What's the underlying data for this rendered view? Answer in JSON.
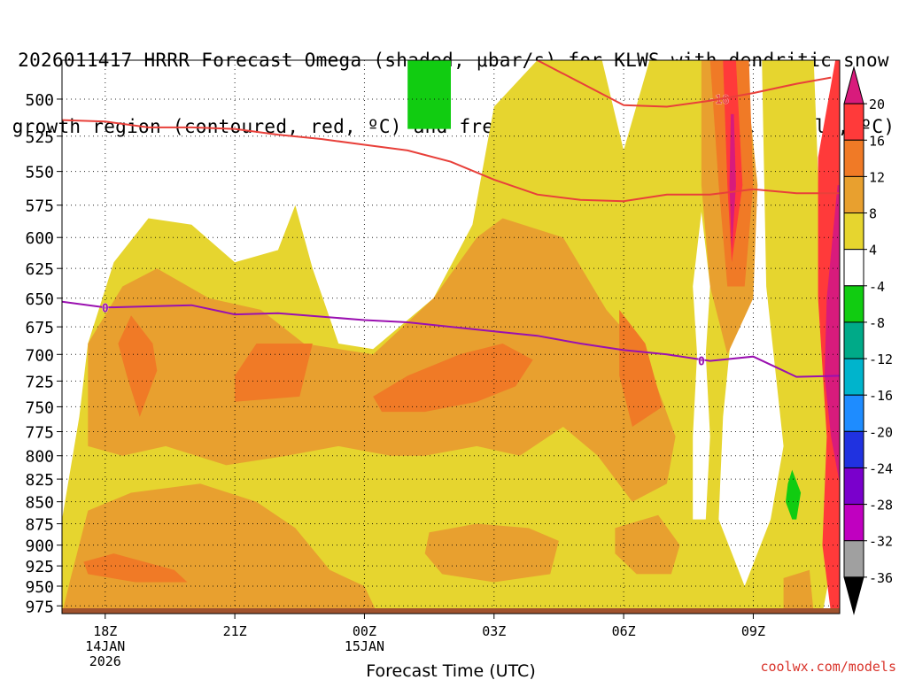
{
  "title": {
    "line1": "2026011417 HRRR Forecast Omega (shaded, μbar/s) for KLWS with dendritic snow",
    "line2": "growth region (contoured, red, ºC) and freezing level (contoured, purple, ºC)"
  },
  "credit": "coolwx.com/models",
  "chart_data": {
    "type": "heatmap",
    "xlabel": "Forecast Time (UTC)",
    "x_hours": [
      18,
      21,
      24,
      27,
      30,
      33
    ],
    "xlim": [
      17,
      35
    ],
    "x_ticks": [
      {
        "hour": 18,
        "lines": [
          "18Z",
          "14JAN",
          "2026"
        ]
      },
      {
        "hour": 21,
        "lines": [
          "21Z"
        ]
      },
      {
        "hour": 24,
        "lines": [
          "00Z",
          "15JAN"
        ]
      },
      {
        "hour": 27,
        "lines": [
          "03Z"
        ]
      },
      {
        "hour": 30,
        "lines": [
          "06Z"
        ]
      },
      {
        "hour": 33,
        "lines": [
          "09Z"
        ]
      }
    ],
    "y_levels": [
      500,
      525,
      550,
      575,
      600,
      625,
      650,
      675,
      700,
      725,
      750,
      775,
      800,
      825,
      850,
      875,
      900,
      925,
      950,
      975
    ],
    "ylim": [
      475,
      985
    ],
    "y_scale": "log-pressure",
    "grid": "dotted",
    "colorbar": {
      "labels": [
        "20",
        "16",
        "12",
        "8",
        "4",
        "-4",
        "-8",
        "-12",
        "-16",
        "-20",
        "-24",
        "-28",
        "-32",
        "-36"
      ],
      "colors": [
        "#d81b7c",
        "#ff3a3a",
        "#f07a26",
        "#e8a02f",
        "#e6d52f",
        "#ffffff",
        "#11cc11",
        "#00aa88",
        "#00b4cc",
        "#1e8cff",
        "#2032e0",
        "#7a00cc",
        "#c000c0",
        "#a0a0a0",
        "#000000"
      ]
    },
    "omega_regions": [
      {
        "level": 4,
        "color": "#e6d52f",
        "points": [
          [
            17.0,
            985
          ],
          [
            17.0,
            870
          ],
          [
            17.4,
            760
          ],
          [
            17.6,
            690
          ],
          [
            18.2,
            620
          ],
          [
            19.0,
            585
          ],
          [
            20.0,
            590
          ],
          [
            21.0,
            620
          ],
          [
            22.0,
            610
          ],
          [
            22.4,
            575
          ],
          [
            22.8,
            625
          ],
          [
            23.4,
            690
          ],
          [
            24.2,
            695
          ],
          [
            25.6,
            650
          ],
          [
            26.5,
            590
          ],
          [
            27.0,
            505
          ],
          [
            28.0,
            475
          ],
          [
            29.5,
            475
          ],
          [
            30.0,
            535
          ],
          [
            30.6,
            475
          ],
          [
            32.0,
            475
          ],
          [
            32.4,
            560
          ],
          [
            32.6,
            640
          ],
          [
            32.3,
            760
          ],
          [
            32.2,
            870
          ],
          [
            32.8,
            950
          ],
          [
            33.4,
            870
          ],
          [
            33.7,
            790
          ],
          [
            33.3,
            640
          ],
          [
            33.2,
            475
          ],
          [
            34.4,
            475
          ],
          [
            34.6,
            640
          ],
          [
            34.8,
            800
          ],
          [
            34.9,
            900
          ],
          [
            34.6,
            985
          ]
        ]
      },
      {
        "level": 8,
        "color": "#e8a02f",
        "points": [
          [
            17.0,
            985
          ],
          [
            17.2,
            940
          ],
          [
            17.6,
            860
          ],
          [
            18.6,
            840
          ],
          [
            20.2,
            830
          ],
          [
            21.5,
            850
          ],
          [
            22.4,
            880
          ],
          [
            23.2,
            930
          ],
          [
            24.0,
            950
          ],
          [
            24.3,
            985
          ]
        ]
      },
      {
        "level": 8,
        "color": "#e8a02f",
        "points": [
          [
            17.6,
            790
          ],
          [
            17.6,
            690
          ],
          [
            18.4,
            640
          ],
          [
            19.2,
            625
          ],
          [
            20.4,
            650
          ],
          [
            21.6,
            660
          ],
          [
            22.6,
            690
          ],
          [
            24.2,
            700
          ],
          [
            25.6,
            650
          ],
          [
            26.6,
            600
          ],
          [
            27.2,
            585
          ],
          [
            28.6,
            600
          ],
          [
            29.6,
            660
          ],
          [
            30.5,
            700
          ],
          [
            31.2,
            780
          ],
          [
            31.0,
            830
          ],
          [
            30.2,
            850
          ],
          [
            29.4,
            800
          ],
          [
            28.6,
            770
          ],
          [
            27.6,
            800
          ],
          [
            26.6,
            790
          ],
          [
            25.4,
            800
          ],
          [
            24.6,
            800
          ],
          [
            23.4,
            790
          ],
          [
            22.2,
            800
          ],
          [
            20.8,
            810
          ],
          [
            19.4,
            790
          ],
          [
            18.4,
            800
          ]
        ]
      },
      {
        "level": 8,
        "color": "#e8a02f",
        "points": [
          [
            25.5,
            885
          ],
          [
            26.6,
            875
          ],
          [
            27.8,
            880
          ],
          [
            28.5,
            895
          ],
          [
            28.3,
            935
          ],
          [
            27.0,
            945
          ],
          [
            25.8,
            935
          ],
          [
            25.4,
            910
          ]
        ]
      },
      {
        "level": 8,
        "color": "#e8a02f",
        "points": [
          [
            29.8,
            880
          ],
          [
            30.8,
            865
          ],
          [
            31.3,
            900
          ],
          [
            31.1,
            935
          ],
          [
            30.3,
            935
          ],
          [
            29.8,
            910
          ]
        ]
      },
      {
        "level": 8,
        "color": "#e8a02f",
        "points": [
          [
            31.8,
            475
          ],
          [
            32.8,
            475
          ],
          [
            33.1,
            560
          ],
          [
            33.0,
            650
          ],
          [
            32.4,
            700
          ],
          [
            32.0,
            640
          ],
          [
            31.8,
            560
          ]
        ]
      },
      {
        "level": 8,
        "color": "#e8a02f",
        "points": [
          [
            33.7,
            940
          ],
          [
            34.3,
            930
          ],
          [
            34.4,
            985
          ],
          [
            33.7,
            985
          ]
        ]
      },
      {
        "level": 12,
        "color": "#f07a26",
        "points": [
          [
            18.6,
            665
          ],
          [
            19.1,
            690
          ],
          [
            19.2,
            715
          ],
          [
            18.8,
            760
          ],
          [
            18.5,
            720
          ],
          [
            18.3,
            690
          ]
        ]
      },
      {
        "level": 12,
        "color": "#f07a26",
        "points": [
          [
            21.0,
            720
          ],
          [
            21.5,
            690
          ],
          [
            22.8,
            690
          ],
          [
            22.5,
            740
          ],
          [
            21.0,
            745
          ]
        ]
      },
      {
        "level": 12,
        "color": "#f07a26",
        "points": [
          [
            24.2,
            740
          ],
          [
            25.0,
            720
          ],
          [
            26.2,
            700
          ],
          [
            27.2,
            690
          ],
          [
            27.9,
            705
          ],
          [
            27.5,
            730
          ],
          [
            26.6,
            745
          ],
          [
            25.4,
            755
          ],
          [
            24.4,
            755
          ]
        ]
      },
      {
        "level": 12,
        "color": "#f07a26",
        "points": [
          [
            29.9,
            660
          ],
          [
            30.5,
            690
          ],
          [
            30.9,
            750
          ],
          [
            30.2,
            770
          ],
          [
            29.9,
            720
          ]
        ]
      },
      {
        "level": 12,
        "color": "#f07a26",
        "points": [
          [
            17.5,
            920
          ],
          [
            18.2,
            910
          ],
          [
            19.6,
            930
          ],
          [
            19.9,
            945
          ],
          [
            18.7,
            945
          ],
          [
            17.6,
            935
          ]
        ]
      },
      {
        "level": 12,
        "color": "#f07a26",
        "points": [
          [
            32.0,
            475
          ],
          [
            32.9,
            475
          ],
          [
            33.0,
            560
          ],
          [
            32.8,
            640
          ],
          [
            32.4,
            640
          ],
          [
            32.2,
            560
          ]
        ]
      },
      {
        "level": 16,
        "color": "#ff3a3a",
        "points": [
          [
            32.3,
            475
          ],
          [
            32.6,
            475
          ],
          [
            32.75,
            560
          ],
          [
            32.5,
            620
          ],
          [
            32.4,
            560
          ]
        ]
      },
      {
        "level": 16,
        "color": "#ff3a3a",
        "points": [
          [
            34.5,
            540
          ],
          [
            34.9,
            475
          ],
          [
            35.0,
            475
          ],
          [
            35.0,
            985
          ],
          [
            34.8,
            985
          ],
          [
            34.6,
            900
          ],
          [
            34.7,
            780
          ],
          [
            34.5,
            650
          ]
        ]
      },
      {
        "level": 20,
        "color": "#d81b7c",
        "points": [
          [
            34.7,
            650
          ],
          [
            34.95,
            560
          ],
          [
            35.0,
            560
          ],
          [
            35.0,
            830
          ],
          [
            34.8,
            780
          ],
          [
            34.65,
            720
          ]
        ]
      },
      {
        "level": 20,
        "color": "#d81b7c",
        "points": [
          [
            32.48,
            510
          ],
          [
            32.55,
            510
          ],
          [
            32.6,
            560
          ],
          [
            32.5,
            610
          ],
          [
            32.45,
            560
          ]
        ]
      },
      {
        "level": -8,
        "color": "#11cc11",
        "points": [
          [
            25.0,
            475
          ],
          [
            26.0,
            475
          ],
          [
            26.0,
            520
          ],
          [
            25.0,
            520
          ]
        ]
      },
      {
        "level": -8,
        "color": "#11cc11",
        "points": [
          [
            33.8,
            830
          ],
          [
            33.9,
            815
          ],
          [
            34.1,
            840
          ],
          [
            34.0,
            870
          ],
          [
            33.9,
            870
          ],
          [
            33.75,
            850
          ]
        ]
      },
      {
        "level": 0,
        "color": "#ffffff",
        "points": [
          [
            31.8,
            580
          ],
          [
            32.0,
            640
          ],
          [
            31.9,
            700
          ],
          [
            32.0,
            780
          ],
          [
            31.9,
            870
          ],
          [
            31.6,
            870
          ],
          [
            31.6,
            780
          ],
          [
            31.7,
            700
          ],
          [
            31.6,
            640
          ]
        ]
      }
    ],
    "series": [
      {
        "color": "#e8403a",
        "label": "-18",
        "label_at": [
          32.2,
          500
        ],
        "points": [
          [
            17,
            514
          ],
          [
            18,
            515
          ],
          [
            19,
            519
          ],
          [
            20,
            519
          ],
          [
            21,
            520
          ],
          [
            22,
            524
          ],
          [
            23,
            527
          ],
          [
            24,
            531
          ],
          [
            25,
            535
          ],
          [
            26,
            543
          ],
          [
            27,
            556
          ],
          [
            28,
            567
          ],
          [
            29,
            571
          ],
          [
            30,
            572
          ],
          [
            31,
            567
          ],
          [
            32,
            567
          ],
          [
            33,
            563
          ],
          [
            34,
            566
          ],
          [
            35,
            566
          ]
        ]
      },
      {
        "color": "#e8403a",
        "label": "",
        "label_at": null,
        "points": [
          [
            28.0,
            475
          ],
          [
            30.0,
            504
          ],
          [
            31.0,
            505
          ],
          [
            32.0,
            501
          ],
          [
            33.0,
            496
          ],
          [
            34.0,
            490
          ],
          [
            34.8,
            486
          ]
        ]
      },
      {
        "color": "#9a10b0",
        "label": "0",
        "label_at": [
          18.0,
          658
        ],
        "points": [
          [
            17,
            653
          ],
          [
            18,
            658
          ],
          [
            19,
            657
          ],
          [
            20,
            656
          ],
          [
            21,
            664
          ],
          [
            22,
            663
          ],
          [
            23,
            666
          ],
          [
            24,
            669
          ],
          [
            25,
            671
          ],
          [
            26,
            675
          ],
          [
            27,
            679
          ],
          [
            28,
            683
          ],
          [
            29,
            690
          ],
          [
            30,
            696
          ],
          [
            31,
            700
          ],
          [
            32,
            706
          ],
          [
            33,
            702
          ],
          [
            34,
            721
          ],
          [
            35,
            720
          ]
        ]
      },
      {
        "color": "#9a10b0",
        "label": "0",
        "label_at": [
          31.8,
          706
        ],
        "points": []
      }
    ],
    "ground_band_color": "#a0522d"
  }
}
